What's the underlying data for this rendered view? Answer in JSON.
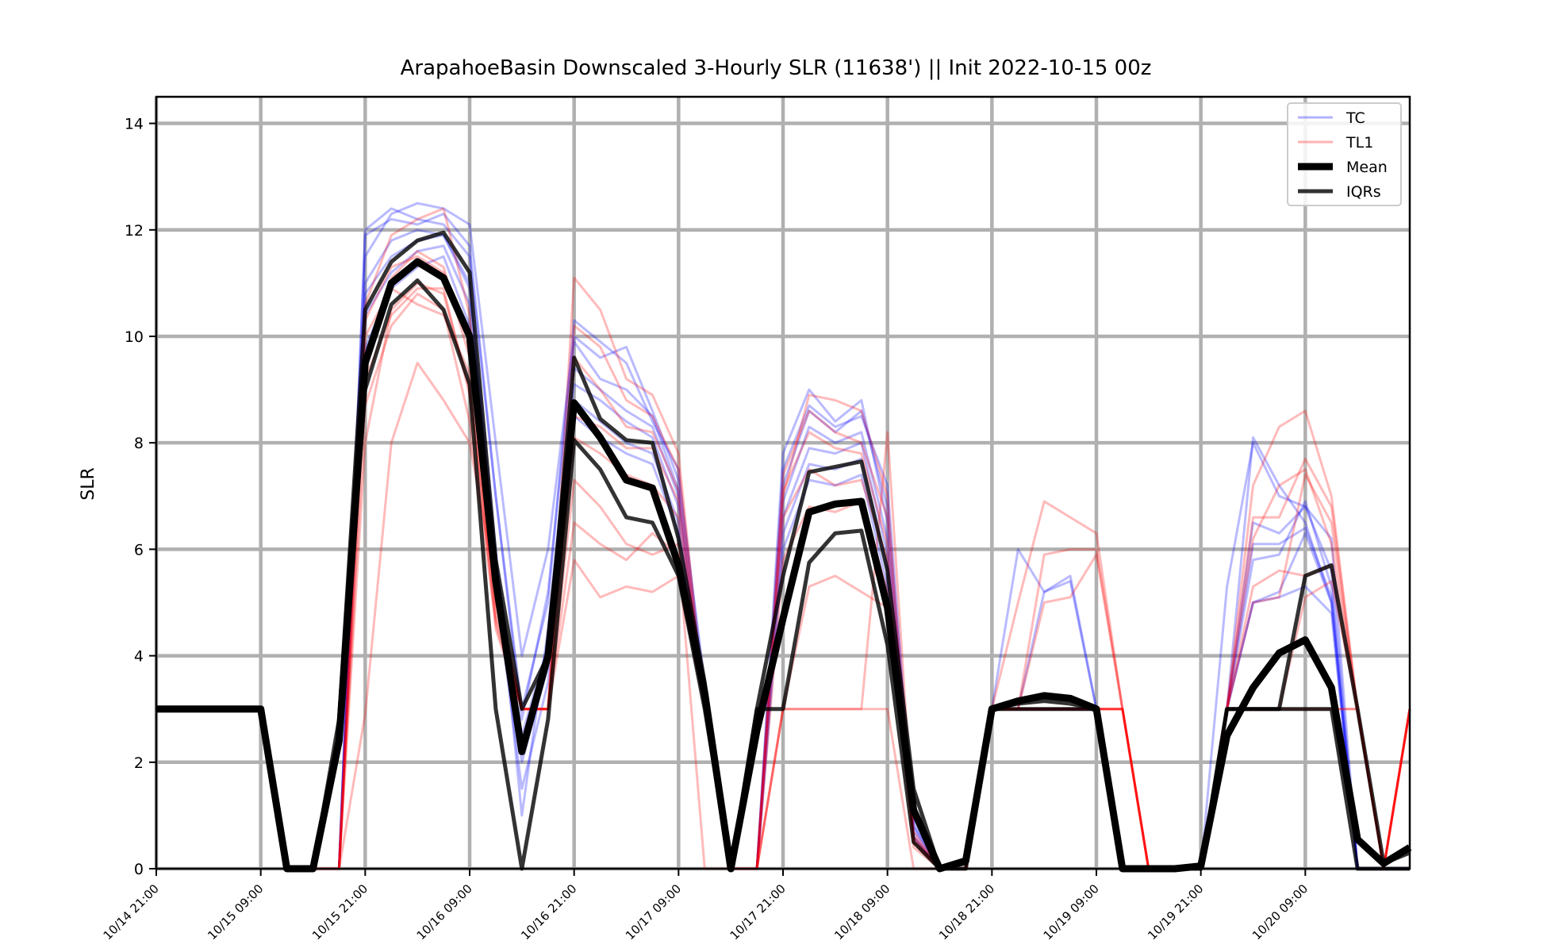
{
  "chart_data": {
    "type": "line",
    "title": "ArapahoeBasin Downscaled 3-Hourly SLR (11638') || Init 2022-10-15 00z",
    "xlabel": "",
    "ylabel": "SLR",
    "ylim": [
      0,
      14.5
    ],
    "yticks": [
      0,
      2,
      4,
      6,
      8,
      10,
      12,
      14
    ],
    "x_start": "10/14 21:00",
    "x_step_hours": 3,
    "num_steps": 48,
    "xtick_labels": [
      "10/14 21:00",
      "10/15 09:00",
      "10/15 21:00",
      "10/16 09:00",
      "10/16 21:00",
      "10/17 09:00",
      "10/17 21:00",
      "10/18 09:00",
      "10/18 21:00",
      "10/19 09:00",
      "10/19 21:00",
      "10/20 09:00"
    ],
    "grid": true,
    "legend_position": "upper-right",
    "legend": [
      {
        "label": "TC",
        "color": "#0000ff",
        "style": "thin-alpha"
      },
      {
        "label": "TL1",
        "color": "#ff0000",
        "style": "thin-alpha"
      },
      {
        "label": "Mean",
        "color": "#000000",
        "style": "thick"
      },
      {
        "label": "IQRs",
        "color": "#000000",
        "style": "medium"
      }
    ],
    "colors": {
      "tc": "#0000ff",
      "tl1": "#ff0000",
      "mean": "#000000",
      "iqr": "#000000",
      "grid": "#b0b0b0"
    },
    "series": [
      {
        "name": "Mean",
        "values": [
          3,
          3,
          3,
          3,
          3,
          0,
          0,
          2.4,
          9.5,
          11,
          11.4,
          11.1,
          10,
          5.4,
          2.2,
          4,
          8.75,
          8.1,
          7.3,
          7.15,
          5.7,
          3.3,
          0,
          2.6,
          4.7,
          6.7,
          6.85,
          6.9,
          4.9,
          1.1,
          0,
          0.15,
          3,
          3.15,
          3.25,
          3.2,
          3,
          0,
          0,
          0,
          0.05,
          2.5,
          3.4,
          4.05,
          4.3,
          3.4,
          0.55,
          0.1,
          0.4
        ]
      },
      {
        "name": "IQR upper",
        "values": [
          3,
          3,
          3,
          3,
          3,
          0,
          0,
          2.8,
          10.5,
          11.4,
          11.8,
          11.95,
          11.2,
          5.8,
          3,
          4,
          9.6,
          8.45,
          8.05,
          8.0,
          6.2,
          3.5,
          0,
          3,
          5.5,
          7.45,
          7.55,
          7.65,
          5.6,
          1.5,
          0,
          0.1,
          3,
          3.1,
          3.15,
          3.1,
          3,
          0,
          0,
          0,
          0,
          3,
          3,
          3,
          5.5,
          5.7,
          3,
          0.1,
          0.3
        ]
      },
      {
        "name": "IQR lower",
        "values": [
          3,
          3,
          3,
          3,
          3,
          0,
          0,
          2.5,
          9,
          10.6,
          11.05,
          10.5,
          9.1,
          3,
          0,
          2.8,
          8.05,
          7.5,
          6.6,
          6.5,
          5.5,
          3,
          0,
          3,
          3,
          5.75,
          6.3,
          6.35,
          4.2,
          0.5,
          0,
          0,
          3,
          3,
          3,
          3,
          3,
          0,
          0,
          0,
          0,
          3,
          3,
          3,
          3,
          3,
          0,
          0,
          0
        ]
      },
      {
        "name": "TC member A",
        "values": [
          3,
          3,
          3,
          3,
          3,
          0,
          0,
          0,
          12,
          12.4,
          12.2,
          12.1,
          11.5,
          7,
          3,
          5,
          10.3,
          9.9,
          9.5,
          8.4,
          7.5,
          3.3,
          0,
          0,
          7.5,
          8.7,
          8.3,
          8.5,
          7.2,
          0.8,
          0,
          0,
          3,
          6,
          5.2,
          5.5,
          3,
          0,
          0,
          0,
          0,
          5.3,
          8,
          7,
          6.8,
          6.2,
          0,
          0,
          0
        ]
      },
      {
        "name": "TC member B",
        "values": [
          3,
          3,
          3,
          3,
          3,
          0,
          0,
          0,
          11.5,
          12.3,
          12.5,
          12.4,
          12.1,
          8,
          4,
          6,
          10,
          9.6,
          9.8,
          8.6,
          7.3,
          3.5,
          0,
          0,
          7.8,
          9,
          8.4,
          8.8,
          6.5,
          0.6,
          0,
          0,
          3,
          3,
          5.2,
          5.4,
          3,
          0,
          0,
          0,
          0,
          3,
          8.1,
          7.2,
          6.5,
          5,
          0,
          0,
          0
        ]
      },
      {
        "name": "TC member C",
        "values": [
          3,
          3,
          3,
          3,
          3,
          0,
          0,
          0,
          11,
          11.8,
          12,
          11.9,
          11,
          6,
          1,
          4.5,
          9.4,
          9,
          8.6,
          8.3,
          7,
          3,
          0,
          0,
          6.9,
          8.3,
          8,
          8.2,
          6.2,
          1,
          0,
          0,
          3,
          3,
          3,
          3,
          3,
          0,
          0,
          0,
          0,
          3,
          6.5,
          6.3,
          6.8,
          5.6,
          0,
          0,
          0
        ]
      },
      {
        "name": "TC member D",
        "values": [
          3,
          3,
          3,
          3,
          3,
          0,
          0,
          0,
          10.8,
          11.5,
          11.8,
          11.9,
          10.9,
          5.8,
          2.5,
          4.2,
          9.1,
          8.8,
          8.4,
          8.1,
          6.8,
          3,
          0,
          0,
          6.6,
          7.9,
          7.8,
          8,
          5.9,
          0.9,
          0,
          0,
          3,
          3,
          3,
          3,
          3,
          0,
          0,
          0,
          0,
          3,
          5.8,
          5.9,
          6.9,
          5.3,
          0,
          0,
          0
        ]
      },
      {
        "name": "TC member E",
        "values": [
          3,
          3,
          3,
          3,
          3,
          0,
          0,
          0,
          10.4,
          11.2,
          11.6,
          11.7,
          10.6,
          5.5,
          2,
          3.8,
          8.8,
          8.4,
          8,
          7.8,
          6.5,
          3,
          0,
          0,
          6.3,
          7.6,
          7.5,
          7.7,
          5.6,
          0.7,
          0,
          0,
          3,
          3,
          3,
          3,
          3,
          0,
          0,
          0,
          0,
          3,
          5,
          5.2,
          6.3,
          5,
          0,
          0,
          0
        ]
      },
      {
        "name": "TC member F",
        "values": [
          3,
          3,
          3,
          3,
          3,
          0,
          0,
          0,
          11.9,
          12.2,
          12.1,
          12.3,
          11.7,
          7,
          2.8,
          5.2,
          9.9,
          9.2,
          9,
          8.5,
          7.1,
          3.2,
          0,
          0,
          7.2,
          8.6,
          8.2,
          8.6,
          6.8,
          0.8,
          0,
          0,
          3,
          3,
          3,
          3,
          3,
          0,
          0,
          0,
          0,
          3,
          6.1,
          6.1,
          6.4,
          5.1,
          0,
          0,
          0
        ]
      },
      {
        "name": "TC member G",
        "values": [
          3,
          3,
          3,
          3,
          3,
          0,
          0,
          0,
          9.8,
          10.9,
          11.3,
          11.5,
          10.2,
          5.3,
          1.5,
          3.5,
          8.5,
          8.1,
          7.8,
          7.6,
          6.3,
          3,
          0,
          0,
          6,
          7.3,
          7.2,
          7.4,
          5.3,
          0.6,
          0,
          0,
          3,
          3,
          3,
          3,
          3,
          0,
          0,
          0,
          0,
          3,
          5,
          5.1,
          5.3,
          4.8,
          0,
          0,
          0
        ]
      },
      {
        "name": "TL1 member A",
        "values": [
          3,
          3,
          3,
          3,
          3,
          0,
          0,
          0,
          2.9,
          8,
          9.5,
          8.8,
          8,
          5.3,
          3,
          3,
          11.1,
          10.5,
          9.2,
          8.9,
          7.8,
          3,
          0,
          0,
          7,
          8.9,
          8.8,
          8.6,
          7,
          0.5,
          0,
          0,
          3,
          5,
          6.9,
          6.6,
          6.3,
          3,
          0,
          0,
          0,
          3,
          7.2,
          8.3,
          8.6,
          7,
          3,
          0,
          3
        ]
      },
      {
        "name": "TL1 member B",
        "values": [
          3,
          3,
          3,
          3,
          3,
          0,
          0,
          0,
          8,
          10.5,
          11,
          10.8,
          9,
          5,
          3,
          3,
          10.2,
          9.8,
          8.8,
          8.5,
          7.5,
          3,
          0,
          0,
          7.4,
          8.6,
          8.2,
          8,
          6.6,
          0.6,
          0,
          0,
          3,
          3,
          5,
          5.1,
          5.9,
          3,
          0,
          0,
          0,
          3,
          6.6,
          6.6,
          7.7,
          6.8,
          3,
          0,
          3
        ]
      },
      {
        "name": "TL1 member C",
        "values": [
          3,
          3,
          3,
          3,
          3,
          0,
          0,
          0,
          9.5,
          11.1,
          11.6,
          11.3,
          9.6,
          4.8,
          3,
          3,
          9.6,
          9,
          8.3,
          8.2,
          7.1,
          3,
          0,
          0,
          7.1,
          8.2,
          7.9,
          7.8,
          6.1,
          0.5,
          0,
          0,
          3,
          3,
          5.9,
          6,
          6,
          3,
          0,
          0,
          0,
          3,
          5,
          5.1,
          7.4,
          6.5,
          3,
          0,
          3
        ]
      },
      {
        "name": "TL1 member D",
        "values": [
          3,
          3,
          3,
          3,
          3,
          0,
          0,
          0,
          10,
          10.9,
          10.6,
          10.4,
          9.3,
          4.5,
          3,
          3,
          8.1,
          7.8,
          7.4,
          7.2,
          6.6,
          3,
          0,
          0,
          6.6,
          7.5,
          7.2,
          7.3,
          5.8,
          0.6,
          0,
          0,
          3,
          3,
          3,
          3,
          3,
          3,
          0,
          0,
          0,
          3,
          6.2,
          7.2,
          7.5,
          6.1,
          3,
          0,
          3
        ]
      },
      {
        "name": "TL1 member E",
        "values": [
          3,
          3,
          3,
          3,
          3,
          0,
          0,
          0,
          10.6,
          11.9,
          12.2,
          12.4,
          10.4,
          5,
          3,
          3,
          6.5,
          6.1,
          5.8,
          6.3,
          5.9,
          0,
          0,
          0,
          3,
          3,
          3,
          3,
          3,
          0,
          0,
          0,
          3,
          3,
          3,
          3,
          3,
          3,
          0,
          0,
          0,
          3,
          3,
          3,
          3,
          3,
          3,
          0,
          3
        ]
      },
      {
        "name": "TL1 member F",
        "values": [
          3,
          3,
          3,
          3,
          3,
          0,
          0,
          0,
          8.7,
          10.2,
          10.8,
          10.5,
          8.4,
          4.6,
          3,
          3,
          5.8,
          5.1,
          5.3,
          5.2,
          5.5,
          3,
          0,
          0,
          3,
          5.3,
          5.5,
          5.2,
          4.9,
          0.4,
          0,
          0,
          3,
          3,
          3,
          3,
          3,
          3,
          0,
          0,
          0,
          3,
          3,
          3,
          5.1,
          5.4,
          3,
          0,
          3
        ]
      },
      {
        "name": "TL1 member G",
        "values": [
          3,
          3,
          3,
          3,
          3,
          0,
          0,
          0,
          9.2,
          10.4,
          10.9,
          10.9,
          8.9,
          4.7,
          3,
          3,
          7.3,
          6.8,
          6.1,
          5.9,
          6.1,
          3,
          0,
          0,
          5.8,
          6.8,
          6.7,
          6.9,
          5.2,
          0.5,
          0,
          0,
          3,
          3,
          3,
          3,
          3,
          3,
          0,
          0,
          0,
          3,
          5.3,
          5.6,
          5.5,
          5.7,
          3,
          0,
          3
        ]
      },
      {
        "name": "TL1 member H",
        "values": [
          3,
          3,
          3,
          3,
          3,
          0,
          0,
          0,
          10.3,
          11.3,
          11.5,
          11.2,
          10.1,
          5.2,
          3,
          3,
          8.5,
          8.3,
          7.9,
          7.9,
          6.9,
          3,
          0,
          0,
          3,
          3,
          3,
          3,
          8.2,
          0.7,
          0,
          0,
          3,
          3,
          3,
          3,
          3,
          3,
          0,
          0,
          0,
          3,
          3,
          3,
          3,
          3,
          3,
          0,
          3
        ]
      }
    ]
  }
}
